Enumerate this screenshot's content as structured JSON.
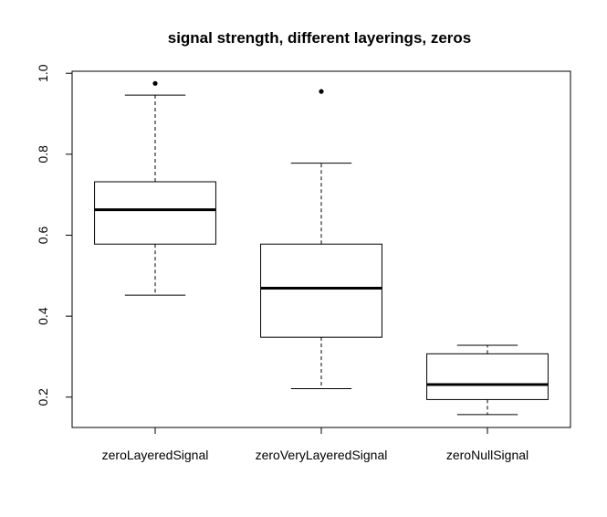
{
  "chart_data": {
    "type": "boxplot",
    "title": "signal strength, different layerings, zeros",
    "xlabel": "",
    "ylabel": "",
    "ylim": [
      0.125,
      1.005
    ],
    "yticks": [
      "0.2",
      "0.4",
      "0.6",
      "0.8",
      "1.0"
    ],
    "ytick_values": [
      0.2,
      0.4,
      0.6,
      0.8,
      1.0
    ],
    "grid": false,
    "categories": [
      "zeroLayeredSignal",
      "zeroVeryLayeredSignal",
      "zeroNullSignal"
    ],
    "boxes": [
      {
        "whisker_low": 0.452,
        "q1": 0.578,
        "median": 0.663,
        "q3": 0.732,
        "whisker_high": 0.946,
        "outliers": [
          0.975
        ]
      },
      {
        "whisker_low": 0.221,
        "q1": 0.348,
        "median": 0.469,
        "q3": 0.578,
        "whisker_high": 0.778,
        "outliers": [
          0.955
        ]
      },
      {
        "whisker_low": 0.157,
        "q1": 0.194,
        "median": 0.231,
        "q3": 0.307,
        "whisker_high": 0.328,
        "outliers": []
      }
    ],
    "colors": {
      "box_fill": "#ffffff",
      "stroke": "#000000"
    }
  }
}
